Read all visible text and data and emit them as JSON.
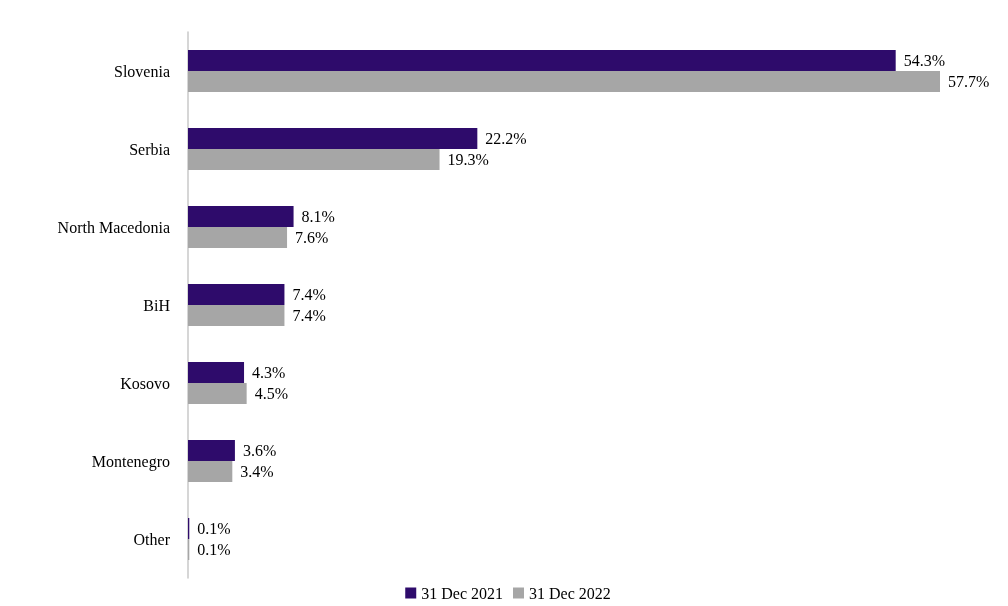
{
  "chart_data": {
    "type": "bar",
    "orientation": "horizontal",
    "categories": [
      "Slovenia",
      "Serbia",
      "North Macedonia",
      "BiH",
      "Kosovo",
      "Montenegro",
      "Other"
    ],
    "series": [
      {
        "name": "31 Dec 2021",
        "color": "#2e0b6b",
        "values": [
          54.3,
          22.2,
          8.1,
          7.4,
          4.3,
          3.6,
          0.1
        ],
        "value_labels": [
          "54.3%",
          "22.2%",
          "8.1%",
          "7.4%",
          "4.3%",
          "3.6%",
          "0.1%"
        ]
      },
      {
        "name": "31 Dec 2022",
        "color": "#a6a6a6",
        "values": [
          57.7,
          19.3,
          7.6,
          7.4,
          4.5,
          3.4,
          0.1
        ],
        "value_labels": [
          "57.7%",
          "19.3%",
          "7.6%",
          "7.4%",
          "4.5%",
          "3.4%",
          "0.1%"
        ]
      }
    ],
    "legend": "bottom"
  }
}
